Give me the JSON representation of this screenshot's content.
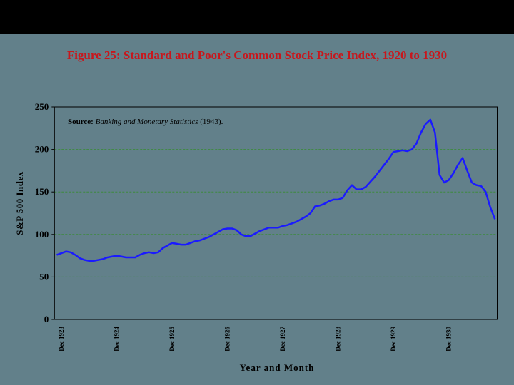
{
  "chart_data": {
    "type": "line",
    "title": "Figure 25: Standard and Poor's Common Stock Price Index, 1920 to 1930",
    "annotation": [
      "Source:",
      "Banking and Monetary Statistics",
      "(1943)."
    ],
    "y_label": "S&P 500 Index",
    "x_label": "Year and Month",
    "categories": [
      null,
      "Dec 1923",
      null,
      null,
      null,
      null,
      null,
      null,
      null,
      null,
      null,
      null,
      null,
      "Dec 1924",
      null,
      null,
      null,
      null,
      null,
      null,
      null,
      null,
      null,
      null,
      null,
      "Dec 1925",
      null,
      null,
      null,
      null,
      null,
      null,
      null,
      null,
      null,
      null,
      null,
      "Dec 1926",
      null,
      null,
      null,
      null,
      null,
      null,
      null,
      null,
      null,
      null,
      null,
      "Dec 1927",
      null,
      null,
      null,
      null,
      null,
      null,
      null,
      null,
      null,
      null,
      null,
      "Dec 1928",
      null,
      null,
      null,
      null,
      null,
      null,
      null,
      null,
      null,
      null,
      null,
      "Dec 1929",
      null,
      null,
      null,
      null,
      null,
      null,
      null,
      null,
      null,
      null,
      null,
      "Dec 1930",
      null,
      null,
      null,
      null,
      null,
      null,
      null,
      null,
      null,
      null
    ],
    "values": [
      76,
      78,
      80,
      79,
      76,
      72,
      70,
      69,
      69,
      70,
      71,
      73,
      74,
      75,
      74,
      73,
      73,
      73,
      76,
      78,
      79,
      78,
      79,
      84,
      87,
      90,
      89,
      88,
      88,
      90,
      92,
      93,
      95,
      97,
      100,
      103,
      106,
      107,
      107,
      105,
      100,
      98,
      98,
      101,
      104,
      106,
      108,
      108,
      108,
      110,
      111,
      113,
      115,
      118,
      121,
      125,
      133,
      134,
      136,
      139,
      141,
      141,
      143,
      152,
      158,
      153,
      153,
      156,
      162,
      168,
      175,
      182,
      189,
      197,
      198,
      199,
      198,
      200,
      207,
      220,
      230,
      235,
      220,
      170,
      161,
      164,
      172,
      182,
      190,
      175,
      161,
      158,
      157,
      150,
      132,
      118
    ],
    "color": "#1a1aff",
    "ylim": [
      0,
      250
    ],
    "yticks": [
      0,
      50,
      100,
      150,
      200,
      250
    ],
    "grid": true,
    "grid_color": "#3d8a3d"
  }
}
